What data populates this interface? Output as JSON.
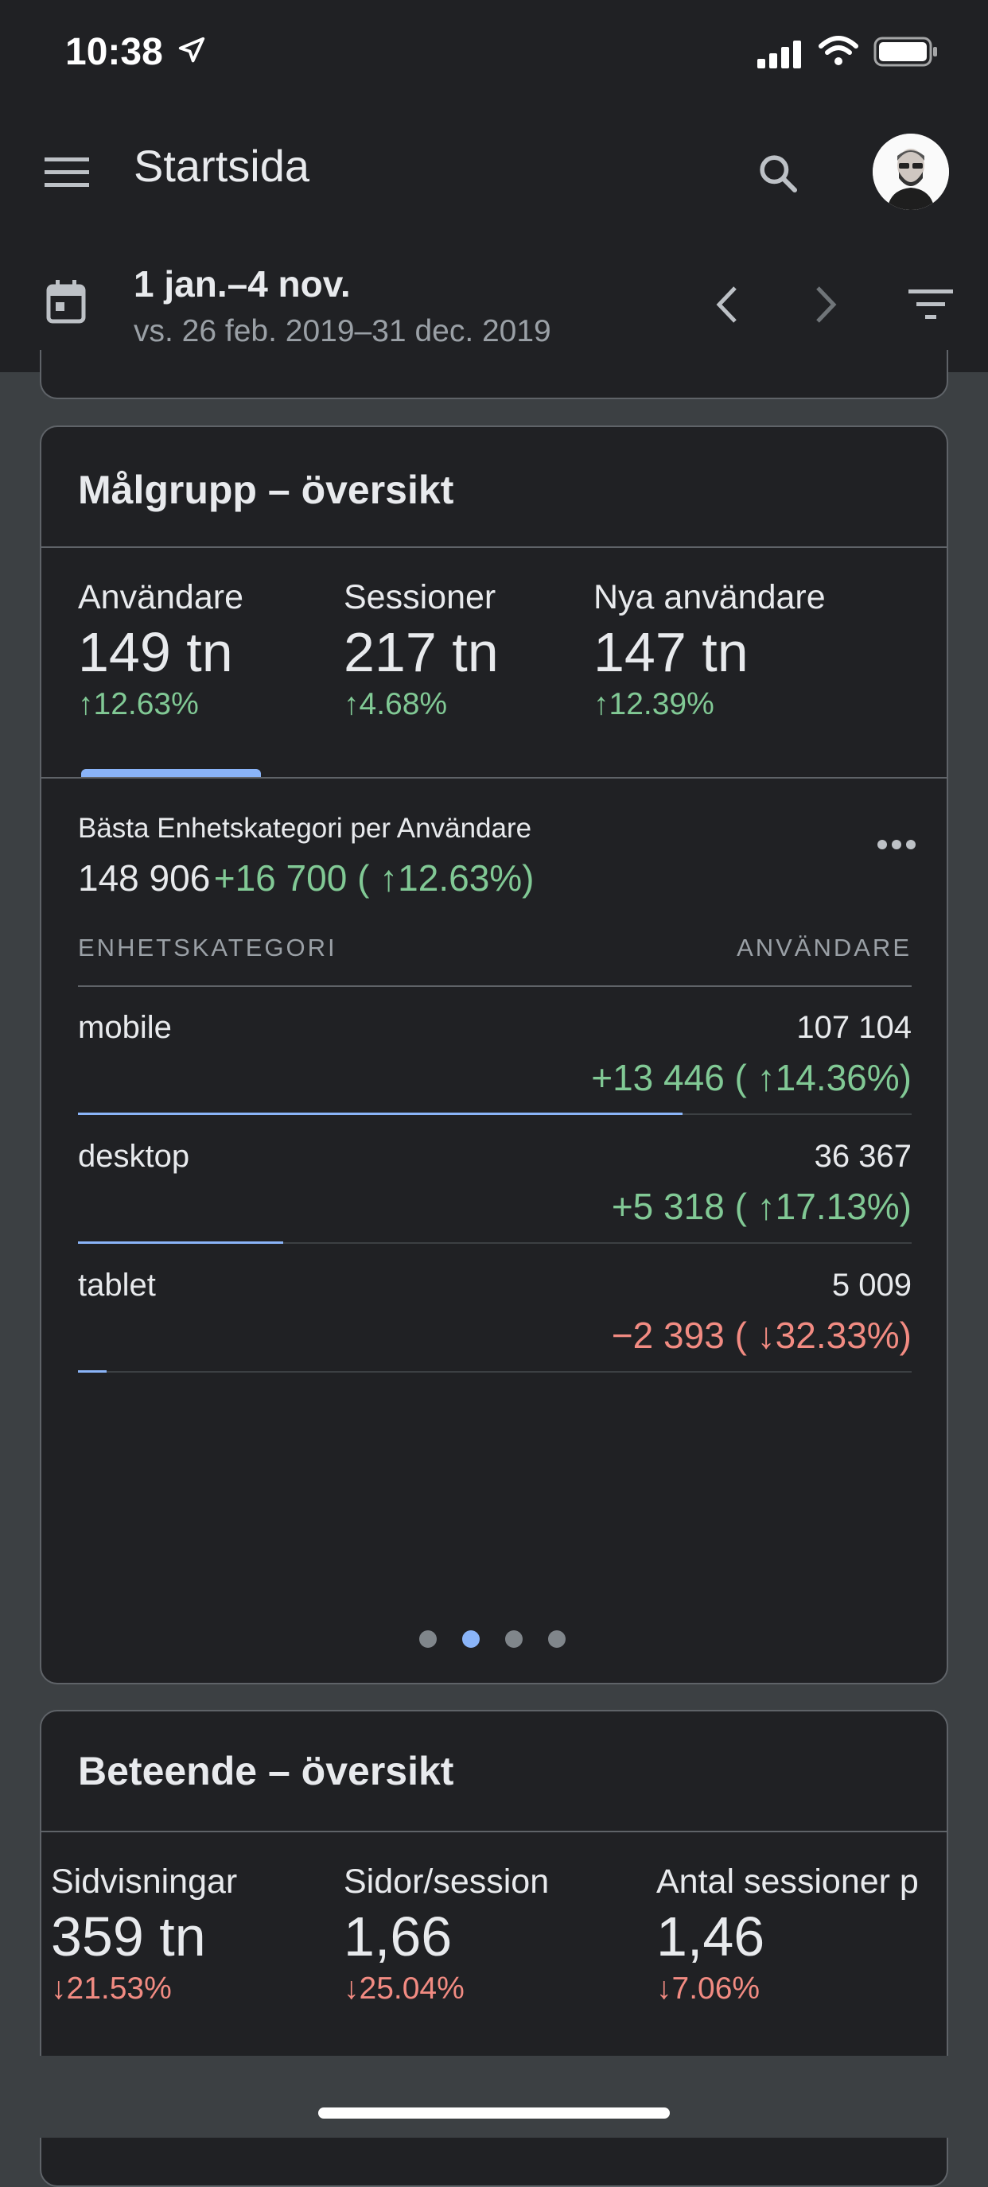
{
  "status_bar": {
    "time": "10:38"
  },
  "app_bar": {
    "title": "Startsida"
  },
  "date_range": {
    "main": "1 jan.–4 nov.",
    "compare": "vs. 26 feb. 2019–31 dec. 2019"
  },
  "audience": {
    "title": "Målgrupp – översikt",
    "metrics": [
      {
        "label": "Användare",
        "value": "149 tn",
        "change": "12.63%",
        "direction": "up"
      },
      {
        "label": "Sessioner",
        "value": "217 tn",
        "change": "4.68%",
        "direction": "up"
      },
      {
        "label": "Nya användare",
        "value": "147 tn",
        "change": "12.39%",
        "direction": "up"
      }
    ],
    "breakdown": {
      "title": "Bästa Enhetskategori per Användare",
      "total": "148 906",
      "total_change": "+16 700 ( ↑12.63%)",
      "col_left": "ENHETSKATEGORI",
      "col_right": "ANVÄNDARE",
      "rows": [
        {
          "name": "mobile",
          "value": "107 104",
          "change": "+13 446 ( ↑14.36%)",
          "direction": "up",
          "share": 0.719
        },
        {
          "name": "desktop",
          "value": "36 367",
          "change": "+5 318 ( ↑17.13%)",
          "direction": "up",
          "share": 0.244
        },
        {
          "name": "tablet",
          "value": "5 009",
          "change": "−2 393 ( ↓32.33%)",
          "direction": "down",
          "share": 0.034
        }
      ]
    },
    "pager": {
      "count": 4,
      "active": 1
    }
  },
  "behavior": {
    "title": "Beteende – översikt",
    "metrics": [
      {
        "label": "Sidvisningar",
        "value": "359 tn",
        "change": "21.53%",
        "direction": "down"
      },
      {
        "label": "Sidor/session",
        "value": "1,66",
        "change": "25.04%",
        "direction": "down"
      },
      {
        "label": "Antal sessioner p",
        "value": "1,46",
        "change": "7.06%",
        "direction": "down"
      }
    ]
  },
  "colors": {
    "up": "#81c995",
    "down": "#f28b82",
    "accent": "#8ab4f8"
  }
}
